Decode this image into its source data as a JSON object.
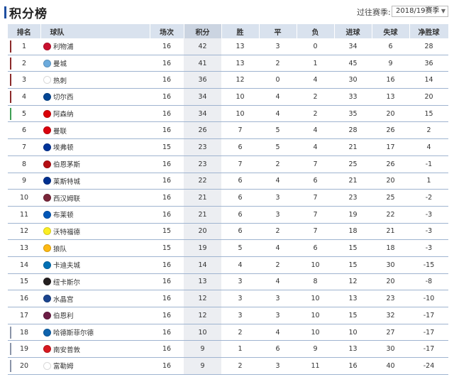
{
  "title": "积分榜",
  "season_label": "过往赛季:",
  "season_value": "2018/19赛季",
  "columns": [
    "排名",
    "球队",
    "场次",
    "积分",
    "胜",
    "平",
    "负",
    "进球",
    "失球",
    "净胜球"
  ],
  "colors": {
    "champions_league": "#8b2a2a",
    "europa_league": "#3f9f55",
    "relegation": "#8a94a8"
  },
  "rows": [
    {
      "rank": "1",
      "team": "利物浦",
      "played": "16",
      "points": "42",
      "won": "13",
      "drawn": "3",
      "lost": "0",
      "gf": "34",
      "ga": "6",
      "gd": "28",
      "zone": "champions_league",
      "crest": "#c8102e"
    },
    {
      "rank": "2",
      "team": "曼城",
      "played": "16",
      "points": "41",
      "won": "13",
      "drawn": "2",
      "lost": "1",
      "gf": "45",
      "ga": "9",
      "gd": "36",
      "zone": "champions_league",
      "crest": "#6cabdd"
    },
    {
      "rank": "3",
      "team": "热刺",
      "played": "16",
      "points": "36",
      "won": "12",
      "drawn": "0",
      "lost": "4",
      "gf": "30",
      "ga": "16",
      "gd": "14",
      "zone": "champions_league",
      "crest": "#ffffff"
    },
    {
      "rank": "4",
      "team": "切尔西",
      "played": "16",
      "points": "34",
      "won": "10",
      "drawn": "4",
      "lost": "2",
      "gf": "33",
      "ga": "13",
      "gd": "20",
      "zone": "champions_league",
      "crest": "#034694"
    },
    {
      "rank": "5",
      "team": "阿森纳",
      "played": "16",
      "points": "34",
      "won": "10",
      "drawn": "4",
      "lost": "2",
      "gf": "35",
      "ga": "20",
      "gd": "15",
      "zone": "europa_league",
      "crest": "#db0007"
    },
    {
      "rank": "6",
      "team": "曼联",
      "played": "16",
      "points": "26",
      "won": "7",
      "drawn": "5",
      "lost": "4",
      "gf": "28",
      "ga": "26",
      "gd": "2",
      "zone": "",
      "crest": "#da020e"
    },
    {
      "rank": "7",
      "team": "埃弗顿",
      "played": "15",
      "points": "23",
      "won": "6",
      "drawn": "5",
      "lost": "4",
      "gf": "21",
      "ga": "17",
      "gd": "4",
      "zone": "",
      "crest": "#003399"
    },
    {
      "rank": "8",
      "team": "伯恩茅斯",
      "played": "16",
      "points": "23",
      "won": "7",
      "drawn": "2",
      "lost": "7",
      "gf": "25",
      "ga": "26",
      "gd": "-1",
      "zone": "",
      "crest": "#b50e12"
    },
    {
      "rank": "9",
      "team": "莱斯特城",
      "played": "16",
      "points": "22",
      "won": "6",
      "drawn": "4",
      "lost": "6",
      "gf": "21",
      "ga": "20",
      "gd": "1",
      "zone": "",
      "crest": "#003090"
    },
    {
      "rank": "10",
      "team": "西汉姆联",
      "played": "16",
      "points": "21",
      "won": "6",
      "drawn": "3",
      "lost": "7",
      "gf": "23",
      "ga": "25",
      "gd": "-2",
      "zone": "",
      "crest": "#7a263a"
    },
    {
      "rank": "11",
      "team": "布莱顿",
      "played": "16",
      "points": "21",
      "won": "6",
      "drawn": "3",
      "lost": "7",
      "gf": "19",
      "ga": "22",
      "gd": "-3",
      "zone": "",
      "crest": "#0057b8"
    },
    {
      "rank": "12",
      "team": "沃特福德",
      "played": "15",
      "points": "20",
      "won": "6",
      "drawn": "2",
      "lost": "7",
      "gf": "18",
      "ga": "21",
      "gd": "-3",
      "zone": "",
      "crest": "#fbee23"
    },
    {
      "rank": "13",
      "team": "狼队",
      "played": "15",
      "points": "19",
      "won": "5",
      "drawn": "4",
      "lost": "6",
      "gf": "15",
      "ga": "18",
      "gd": "-3",
      "zone": "",
      "crest": "#fdb913"
    },
    {
      "rank": "14",
      "team": "卡迪夫城",
      "played": "16",
      "points": "14",
      "won": "4",
      "drawn": "2",
      "lost": "10",
      "gf": "15",
      "ga": "30",
      "gd": "-15",
      "zone": "",
      "crest": "#0070b5"
    },
    {
      "rank": "15",
      "team": "纽卡斯尔",
      "played": "16",
      "points": "13",
      "won": "3",
      "drawn": "4",
      "lost": "8",
      "gf": "12",
      "ga": "20",
      "gd": "-8",
      "zone": "",
      "crest": "#241f20"
    },
    {
      "rank": "16",
      "team": "水晶宫",
      "played": "16",
      "points": "12",
      "won": "3",
      "drawn": "3",
      "lost": "10",
      "gf": "13",
      "ga": "23",
      "gd": "-10",
      "zone": "",
      "crest": "#1b458f"
    },
    {
      "rank": "17",
      "team": "伯恩利",
      "played": "16",
      "points": "12",
      "won": "3",
      "drawn": "3",
      "lost": "10",
      "gf": "15",
      "ga": "32",
      "gd": "-17",
      "zone": "",
      "crest": "#6c1d45"
    },
    {
      "rank": "18",
      "team": "哈德斯菲尔德",
      "played": "16",
      "points": "10",
      "won": "2",
      "drawn": "4",
      "lost": "10",
      "gf": "10",
      "ga": "27",
      "gd": "-17",
      "zone": "relegation",
      "crest": "#0e63ad"
    },
    {
      "rank": "19",
      "team": "南安普敦",
      "played": "16",
      "points": "9",
      "won": "1",
      "drawn": "6",
      "lost": "9",
      "gf": "13",
      "ga": "30",
      "gd": "-17",
      "zone": "relegation",
      "crest": "#d71920"
    },
    {
      "rank": "20",
      "team": "富勒姆",
      "played": "16",
      "points": "9",
      "won": "2",
      "drawn": "3",
      "lost": "11",
      "gf": "16",
      "ga": "40",
      "gd": "-24",
      "zone": "relegation",
      "crest": "#ffffff"
    }
  ]
}
